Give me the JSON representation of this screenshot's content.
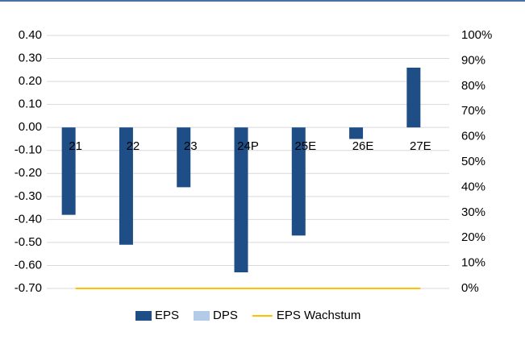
{
  "chart_data": {
    "type": "bar",
    "categories": [
      "21",
      "22",
      "23",
      "24P",
      "25E",
      "26E",
      "27E"
    ],
    "series": [
      {
        "name": "EPS",
        "color": "#1f4e87",
        "values": [
          -0.38,
          -0.51,
          -0.26,
          -0.63,
          -0.47,
          -0.05,
          0.26
        ]
      },
      {
        "name": "DPS",
        "color": "#b4cbe8",
        "values": [
          null,
          null,
          null,
          null,
          null,
          null,
          null
        ]
      },
      {
        "name": "EPS Wachstum",
        "color": "#ffc000",
        "type": "line",
        "axis": "y2",
        "values": [
          0,
          0,
          0,
          0,
          0,
          0,
          0
        ]
      }
    ],
    "ylim": [
      -0.7,
      0.4
    ],
    "yticks": [
      {
        "value": 0.4,
        "label": "0.40"
      },
      {
        "value": 0.3,
        "label": "0.30"
      },
      {
        "value": 0.2,
        "label": "0.20"
      },
      {
        "value": 0.1,
        "label": "0.10"
      },
      {
        "value": 0,
        "label": "0.00"
      },
      {
        "value": -0.1,
        "label": "-0.10"
      },
      {
        "value": -0.2,
        "label": "-0.20"
      },
      {
        "value": -0.3,
        "label": "-0.30"
      },
      {
        "value": -0.4,
        "label": "-0.40"
      },
      {
        "value": -0.5,
        "label": "-0.50"
      },
      {
        "value": -0.6,
        "label": "-0.60"
      },
      {
        "value": -0.7,
        "label": "-0.70"
      }
    ],
    "y2lim": [
      0,
      100
    ],
    "y2ticks": [
      {
        "value": 100,
        "label": "100%"
      },
      {
        "value": 90,
        "label": "90%"
      },
      {
        "value": 80,
        "label": "80%"
      },
      {
        "value": 70,
        "label": "70%"
      },
      {
        "value": 60,
        "label": "60%"
      },
      {
        "value": 50,
        "label": "50%"
      },
      {
        "value": 40,
        "label": "40%"
      },
      {
        "value": 30,
        "label": "30%"
      },
      {
        "value": 20,
        "label": "20%"
      },
      {
        "value": 10,
        "label": "10%"
      },
      {
        "value": 0,
        "label": "0%"
      }
    ],
    "grid": true,
    "legend": "bottom"
  }
}
